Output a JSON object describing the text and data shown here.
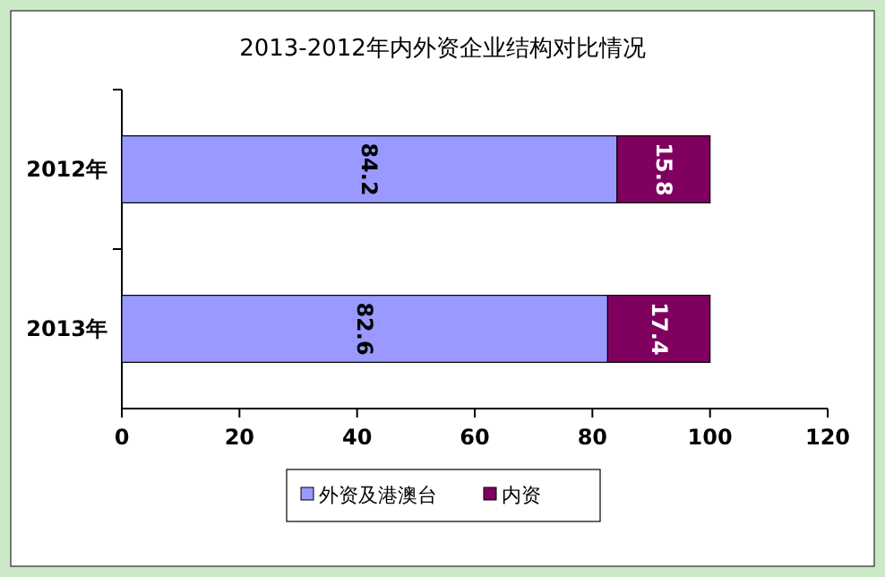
{
  "chart_data": {
    "type": "bar",
    "orientation": "horizontal",
    "stacked": true,
    "title": "2013-2012年内外资企业结构对比情况",
    "categories": [
      "2012年",
      "2013年"
    ],
    "series": [
      {
        "name": "外资及港澳台",
        "color": "#9999ff",
        "values": [
          84.2,
          82.6
        ]
      },
      {
        "name": "内资",
        "color": "#800060",
        "values": [
          15.8,
          17.4
        ]
      }
    ],
    "xlim": [
      0,
      120
    ],
    "xticks": [
      0,
      20,
      40,
      60,
      80,
      100,
      120
    ],
    "data_labels": true,
    "legend": "bottom",
    "grid": false
  }
}
